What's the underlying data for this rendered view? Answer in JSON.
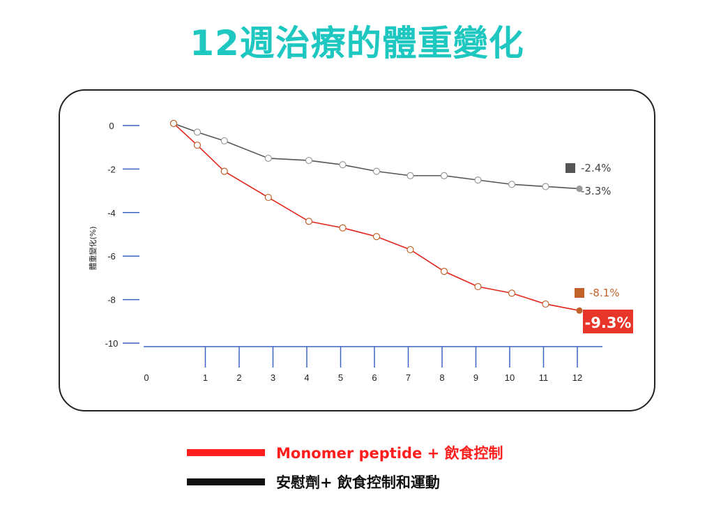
{
  "title": "12週治療的體重變化",
  "colors": {
    "title": "#1ec8c0",
    "treatment": "#e0251b",
    "placebo": "#555555",
    "axis": "#3b63c4",
    "treatment_marker": "#c0622a",
    "placebo_marker": "#555555",
    "highlight_bg": "#e8352a",
    "legend_treatment": "#ff1e1e",
    "legend_placebo": "#111111"
  },
  "chart_data": {
    "type": "line",
    "title": "",
    "xlabel": "",
    "ylabel": "體重變化(%)",
    "x_ticks": [
      0,
      1,
      2,
      3,
      4,
      5,
      6,
      7,
      8,
      9,
      10,
      11,
      12
    ],
    "y_ticks": [
      0,
      -2,
      -4,
      -6,
      -8,
      -10
    ],
    "xlim": [
      0,
      12.5
    ],
    "ylim": [
      -10,
      0
    ],
    "series": [
      {
        "name": "安慰劑+ 飲食控制和運動",
        "x": [
          0,
          0.7,
          1.5,
          2.8,
          4.0,
          5.0,
          6.0,
          7.0,
          8.0,
          9.0,
          10.0,
          11.0,
          12.0
        ],
        "y": [
          0,
          -0.4,
          -0.8,
          -1.6,
          -1.7,
          -1.9,
          -2.2,
          -2.4,
          -2.4,
          -2.6,
          -2.8,
          -2.9,
          -3.0
        ]
      },
      {
        "name": "Monomer peptide + 飲食控制",
        "x": [
          0,
          0.7,
          1.5,
          2.8,
          4.0,
          5.0,
          6.0,
          7.0,
          8.0,
          9.0,
          10.0,
          11.0,
          12.0
        ],
        "y": [
          0,
          -1.0,
          -2.2,
          -3.4,
          -4.5,
          -4.8,
          -5.2,
          -5.8,
          -6.8,
          -7.5,
          -7.8,
          -8.3,
          -8.6
        ]
      }
    ],
    "annotations": [
      {
        "text": "-2.4%",
        "series": "安慰劑+ 飲食控制和運動"
      },
      {
        "text": "-3.3%",
        "series": "安慰劑+ 飲食控制和運動"
      },
      {
        "text": "-8.1%",
        "series": "Monomer peptide + 飲食控制"
      },
      {
        "text": "-9.3%",
        "series": "Monomer peptide + 飲食控制"
      }
    ]
  },
  "legend": {
    "treatment_label": "Monomer peptide + 飲食控制",
    "placebo_label": "安慰劑+ 飲食控制和運動"
  }
}
